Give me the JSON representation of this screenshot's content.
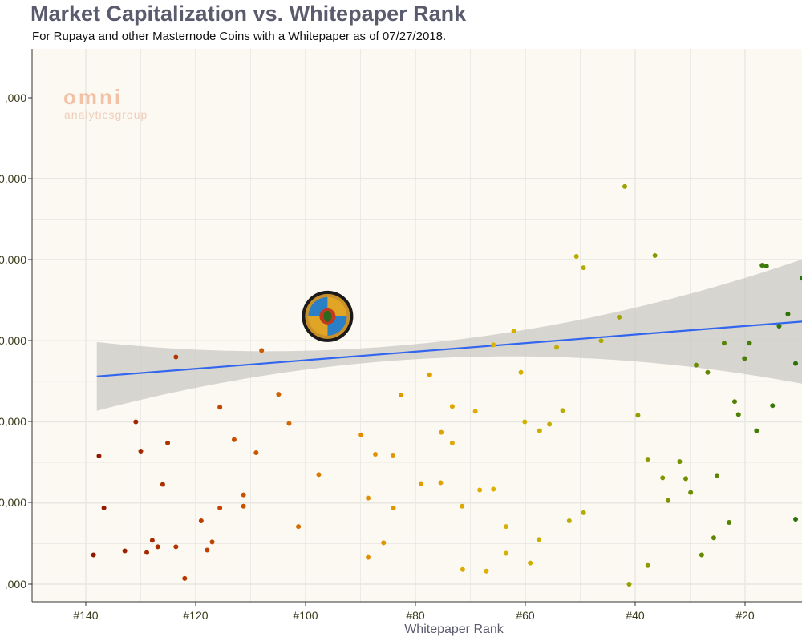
{
  "title": "Market Capitalization vs. Whitepaper Rank",
  "subtitle": "For Rupaya and other Masternode Coins with a Whitepaper as of 07/27/2018.",
  "watermark": {
    "brand": "omni",
    "tagline": "analyticsgroup"
  },
  "chart_data": {
    "type": "scatter",
    "title": "Market Capitalization vs. Whitepaper Rank",
    "subtitle": "For Rupaya and other Masternode Coins with a Whitepaper as of 07/27/2018.",
    "xlabel": "Whitepaper Rank",
    "ylabel": "",
    "x_reversed": true,
    "xlim": [
      147,
      7
    ],
    "x_ticks": [
      140,
      120,
      100,
      80,
      60,
      40,
      20
    ],
    "x_tick_labels": [
      "#140",
      "#120",
      "#100",
      "#80",
      "#60",
      "#40",
      "#20"
    ],
    "y_tick_labels": [
      ",000",
      "0,000",
      "0,000",
      "0,000",
      "0,000",
      "0,000",
      ",000"
    ],
    "grid": true,
    "trend": {
      "type": "linear",
      "color": "#3366ee",
      "y_at_x138": 5.56,
      "y_at_x7": 6.25
    },
    "highlight": {
      "name": "Rupaya",
      "x": 96,
      "y": 6.3
    },
    "points": [
      [
        138.6,
        3.36
      ],
      [
        137.6,
        4.58
      ],
      [
        136.7,
        3.94
      ],
      [
        132.9,
        3.41
      ],
      [
        130.9,
        5.0
      ],
      [
        130.0,
        4.64
      ],
      [
        128.9,
        3.39
      ],
      [
        127.9,
        3.54
      ],
      [
        126.9,
        3.46
      ],
      [
        126.0,
        4.23
      ],
      [
        125.1,
        4.74
      ],
      [
        123.6,
        5.8
      ],
      [
        123.6,
        3.46
      ],
      [
        122.0,
        3.07
      ],
      [
        119.0,
        3.78
      ],
      [
        117.9,
        3.42
      ],
      [
        117.0,
        3.52
      ],
      [
        115.6,
        3.94
      ],
      [
        115.6,
        5.18
      ],
      [
        113.0,
        4.78
      ],
      [
        111.3,
        3.96
      ],
      [
        111.3,
        4.1
      ],
      [
        109.0,
        4.62
      ],
      [
        108.0,
        5.88
      ],
      [
        104.9,
        5.34
      ],
      [
        103.0,
        4.98
      ],
      [
        101.3,
        3.71
      ],
      [
        97.6,
        4.35
      ],
      [
        89.9,
        4.84
      ],
      [
        88.6,
        3.33
      ],
      [
        88.6,
        4.06
      ],
      [
        87.3,
        4.6
      ],
      [
        85.8,
        3.51
      ],
      [
        84.1,
        4.59
      ],
      [
        84.0,
        3.94
      ],
      [
        82.6,
        5.33
      ],
      [
        79.0,
        4.24
      ],
      [
        77.4,
        5.58
      ],
      [
        75.4,
        4.25
      ],
      [
        75.3,
        4.87
      ],
      [
        73.3,
        5.19
      ],
      [
        73.3,
        4.74
      ],
      [
        71.5,
        3.96
      ],
      [
        71.4,
        3.18
      ],
      [
        69.1,
        5.13
      ],
      [
        68.3,
        4.16
      ],
      [
        67.1,
        3.16
      ],
      [
        65.8,
        4.17
      ],
      [
        65.8,
        5.95
      ],
      [
        63.5,
        3.71
      ],
      [
        63.5,
        3.38
      ],
      [
        62.1,
        6.12
      ],
      [
        60.8,
        5.61
      ],
      [
        60.1,
        5.0
      ],
      [
        59.1,
        3.26
      ],
      [
        57.5,
        3.55
      ],
      [
        57.4,
        4.89
      ],
      [
        55.6,
        4.97
      ],
      [
        54.3,
        5.92
      ],
      [
        53.2,
        5.14
      ],
      [
        52.0,
        3.78
      ],
      [
        50.7,
        7.04
      ],
      [
        49.4,
        6.9
      ],
      [
        49.4,
        3.88
      ],
      [
        46.2,
        6.0
      ],
      [
        42.9,
        6.29
      ],
      [
        41.9,
        7.9
      ],
      [
        41.1,
        3.0
      ],
      [
        39.5,
        5.08
      ],
      [
        37.7,
        4.54
      ],
      [
        37.7,
        3.23
      ],
      [
        36.4,
        7.05
      ],
      [
        35.0,
        4.31
      ],
      [
        34.0,
        4.03
      ],
      [
        31.9,
        4.51
      ],
      [
        30.8,
        4.3
      ],
      [
        29.9,
        4.13
      ],
      [
        28.9,
        5.7
      ],
      [
        27.9,
        3.36
      ],
      [
        26.8,
        5.61
      ],
      [
        25.7,
        3.57
      ],
      [
        25.1,
        4.34
      ],
      [
        23.8,
        5.97
      ],
      [
        22.9,
        3.76
      ],
      [
        21.9,
        5.25
      ],
      [
        21.2,
        5.09
      ],
      [
        20.1,
        5.78
      ],
      [
        19.2,
        5.97
      ],
      [
        17.9,
        4.89
      ],
      [
        16.9,
        6.93
      ],
      [
        16.1,
        6.92
      ],
      [
        15.0,
        5.2
      ],
      [
        13.8,
        6.18
      ],
      [
        12.2,
        6.33
      ],
      [
        10.8,
        3.8
      ],
      [
        10.8,
        5.72
      ],
      [
        9.6,
        6.77
      ],
      [
        8.3,
        5.23
      ]
    ]
  }
}
